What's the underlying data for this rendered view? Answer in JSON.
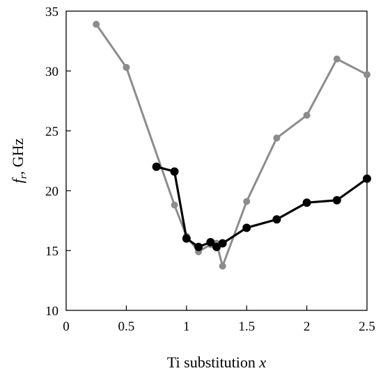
{
  "chart_data": {
    "type": "line",
    "title": "",
    "xlabel": "Ti substitution",
    "xlabel_var": "x",
    "ylabel_var": "f",
    "ylabel_sub": "r",
    "ylabel_unit": ", GHz",
    "xlim": [
      0,
      2.5
    ],
    "ylim": [
      10,
      35
    ],
    "xticks": [
      0,
      0.5,
      1,
      1.5,
      2,
      2.5
    ],
    "xtick_labels": [
      "0",
      "0.5",
      "1",
      "1.5",
      "2",
      "2.5"
    ],
    "yticks": [
      10,
      15,
      20,
      25,
      30,
      35
    ],
    "ytick_labels": [
      "10",
      "15",
      "20",
      "25",
      "30",
      "35"
    ],
    "grid": false,
    "legend": "none",
    "series": [
      {
        "color": "#8c8c8c",
        "points": [
          [
            0.25,
            33.9
          ],
          [
            0.5,
            30.3
          ],
          [
            0.9,
            18.8
          ],
          [
            1.0,
            16.2
          ],
          [
            1.1,
            14.9
          ],
          [
            1.2,
            15.5
          ],
          [
            1.25,
            15.6
          ],
          [
            1.3,
            13.7
          ],
          [
            1.5,
            19.1
          ],
          [
            1.75,
            24.4
          ],
          [
            2.0,
            26.3
          ],
          [
            2.25,
            31.0
          ],
          [
            2.5,
            29.7
          ]
        ]
      },
      {
        "color": "#000000",
        "points": [
          [
            0.75,
            22.0
          ],
          [
            0.9,
            21.6
          ],
          [
            1.0,
            16.0
          ],
          [
            1.1,
            15.3
          ],
          [
            1.2,
            15.7
          ],
          [
            1.25,
            15.3
          ],
          [
            1.3,
            15.6
          ],
          [
            1.5,
            16.9
          ],
          [
            1.75,
            17.6
          ],
          [
            2.0,
            19.0
          ],
          [
            2.25,
            19.2
          ],
          [
            2.5,
            21.0
          ]
        ]
      }
    ]
  }
}
